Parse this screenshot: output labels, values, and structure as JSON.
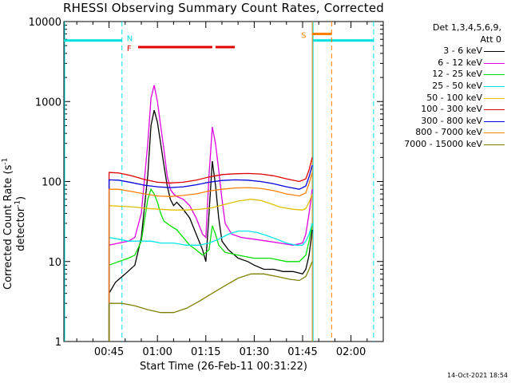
{
  "title": "RHESSI Observing Summary Count Rates, Corrected",
  "xlabel": "Start Time (26-Feb-11 00:31:22)",
  "ylabel_main": "Corrected Count Rate (s",
  "ylabel_exp1": "-1",
  "ylabel_mid": " detector",
  "ylabel_exp2": "-1",
  "ylabel_end": ")",
  "timestamp": "14-Oct-2021 18:54",
  "legend": {
    "header1": "Det 1,3,4,5,6,9,",
    "header2": "Att 0",
    "entries": [
      {
        "label": "3 - 6 keV",
        "color": "#000000"
      },
      {
        "label": "6 - 12 keV",
        "color": "#e000e0"
      },
      {
        "label": "12 - 25 keV",
        "color": "#00e000"
      },
      {
        "label": "25 - 50 keV",
        "color": "#00e8e8"
      },
      {
        "label": "50 - 100 keV",
        "color": "#e0c000"
      },
      {
        "label": "100 - 300 keV",
        "color": "#e00000"
      },
      {
        "label": "300 - 800 keV",
        "color": "#0000e0"
      },
      {
        "label": "800 - 7000 keV",
        "color": "#ff8000"
      },
      {
        "label": "7000 - 15000 keV",
        "color": "#808000"
      }
    ]
  },
  "annotations": {
    "N": {
      "label": "N",
      "color": "#00e0e0"
    },
    "F": {
      "label": "F",
      "color": "#e00000"
    },
    "S": {
      "label": "S",
      "color": "#ff8000"
    }
  },
  "chart_data": {
    "type": "line",
    "title": "RHESSI Observing Summary Count Rates, Corrected",
    "xlabel": "Start Time (26-Feb-11 00:31:22)",
    "ylabel": "Corrected Count Rate (s-1 detector-1)",
    "y_scale": "log",
    "ylim": [
      1,
      10000
    ],
    "xlim": [
      "00:31",
      "02:10"
    ],
    "x_ticks": [
      "00:45",
      "01:00",
      "01:15",
      "01:30",
      "01:45",
      "02:00"
    ],
    "y_ticks": [
      1,
      10,
      100,
      1000,
      10000
    ],
    "grid": false,
    "legend_position": "right",
    "night_intervals": [
      [
        "00:31",
        "00:49"
      ],
      [
        "01:48",
        "02:07"
      ]
    ],
    "saa_interval": [
      "01:48",
      "01:54"
    ],
    "flare_flag_intervals": [
      [
        "00:54",
        "01:17"
      ],
      [
        "01:18",
        "01:24"
      ]
    ],
    "saa_flag_interval": [
      "01:48",
      "01:54"
    ],
    "night_flag_level": 5800,
    "series": [
      {
        "name": "3 - 6 keV",
        "color": "#000000",
        "points": [
          [
            "00:45",
            4
          ],
          [
            "00:47",
            5.5
          ],
          [
            "00:50",
            7
          ],
          [
            "00:53",
            9
          ],
          [
            "00:55",
            20
          ],
          [
            "00:57",
            120
          ],
          [
            "00:58",
            500
          ],
          [
            "00:59",
            780
          ],
          [
            "01:00",
            550
          ],
          [
            "01:01",
            300
          ],
          [
            "01:02",
            160
          ],
          [
            "01:03",
            90
          ],
          [
            "01:04",
            60
          ],
          [
            "01:05",
            50
          ],
          [
            "01:06",
            55
          ],
          [
            "01:08",
            45
          ],
          [
            "01:10",
            35
          ],
          [
            "01:12",
            22
          ],
          [
            "01:14",
            14
          ],
          [
            "01:15",
            10
          ],
          [
            "01:16",
            40
          ],
          [
            "01:17",
            180
          ],
          [
            "01:18",
            90
          ],
          [
            "01:19",
            35
          ],
          [
            "01:20",
            18
          ],
          [
            "01:22",
            14
          ],
          [
            "01:25",
            11
          ],
          [
            "01:28",
            10
          ],
          [
            "01:30",
            9
          ],
          [
            "01:33",
            8
          ],
          [
            "01:36",
            8
          ],
          [
            "01:39",
            7.5
          ],
          [
            "01:42",
            7.5
          ],
          [
            "01:45",
            7
          ],
          [
            "01:46",
            8
          ],
          [
            "01:47",
            12
          ],
          [
            "01:48",
            25
          ]
        ]
      },
      {
        "name": "6 - 12 keV",
        "color": "#e000e0",
        "points": [
          [
            "00:45",
            16
          ],
          [
            "00:48",
            17
          ],
          [
            "00:51",
            18
          ],
          [
            "00:53",
            20
          ],
          [
            "00:55",
            40
          ],
          [
            "00:57",
            300
          ],
          [
            "00:58",
            1100
          ],
          [
            "00:59",
            1600
          ],
          [
            "01:00",
            1000
          ],
          [
            "01:01",
            500
          ],
          [
            "01:02",
            250
          ],
          [
            "01:03",
            120
          ],
          [
            "01:04",
            80
          ],
          [
            "01:05",
            70
          ],
          [
            "01:06",
            65
          ],
          [
            "01:08",
            60
          ],
          [
            "01:10",
            50
          ],
          [
            "01:12",
            35
          ],
          [
            "01:14",
            22
          ],
          [
            "01:15",
            20
          ],
          [
            "01:16",
            120
          ],
          [
            "01:17",
            480
          ],
          [
            "01:18",
            300
          ],
          [
            "01:19",
            140
          ],
          [
            "01:20",
            60
          ],
          [
            "01:21",
            30
          ],
          [
            "01:23",
            22
          ],
          [
            "01:26",
            20
          ],
          [
            "01:30",
            19
          ],
          [
            "01:34",
            18
          ],
          [
            "01:38",
            17
          ],
          [
            "01:42",
            16
          ],
          [
            "01:45",
            17
          ],
          [
            "01:46",
            22
          ],
          [
            "01:47",
            40
          ],
          [
            "01:48",
            80
          ]
        ]
      },
      {
        "name": "12 - 25 keV",
        "color": "#00e000",
        "points": [
          [
            "00:45",
            9
          ],
          [
            "00:48",
            10
          ],
          [
            "00:51",
            11
          ],
          [
            "00:53",
            12
          ],
          [
            "00:55",
            18
          ],
          [
            "00:57",
            60
          ],
          [
            "00:58",
            80
          ],
          [
            "00:59",
            70
          ],
          [
            "01:00",
            55
          ],
          [
            "01:01",
            40
          ],
          [
            "01:02",
            32
          ],
          [
            "01:04",
            28
          ],
          [
            "01:06",
            25
          ],
          [
            "01:08",
            20
          ],
          [
            "01:10",
            16
          ],
          [
            "01:12",
            14
          ],
          [
            "01:14",
            12
          ],
          [
            "01:16",
            14
          ],
          [
            "01:17",
            28
          ],
          [
            "01:18",
            22
          ],
          [
            "01:19",
            16
          ],
          [
            "01:21",
            13
          ],
          [
            "01:25",
            12
          ],
          [
            "01:30",
            11
          ],
          [
            "01:35",
            11
          ],
          [
            "01:40",
            10
          ],
          [
            "01:44",
            10
          ],
          [
            "01:46",
            12
          ],
          [
            "01:47",
            18
          ],
          [
            "01:48",
            30
          ]
        ]
      },
      {
        "name": "25 - 50 keV",
        "color": "#00e8e8",
        "points": [
          [
            "00:45",
            20
          ],
          [
            "00:48",
            19
          ],
          [
            "00:51",
            18
          ],
          [
            "00:55",
            18
          ],
          [
            "00:58",
            18
          ],
          [
            "01:01",
            17
          ],
          [
            "01:05",
            17
          ],
          [
            "01:09",
            16
          ],
          [
            "01:13",
            16
          ],
          [
            "01:16",
            17
          ],
          [
            "01:19",
            19
          ],
          [
            "01:22",
            22
          ],
          [
            "01:25",
            24
          ],
          [
            "01:28",
            24
          ],
          [
            "01:31",
            23
          ],
          [
            "01:34",
            21
          ],
          [
            "01:37",
            19
          ],
          [
            "01:40",
            17
          ],
          [
            "01:43",
            16
          ],
          [
            "01:45",
            16
          ],
          [
            "01:46",
            18
          ],
          [
            "01:47",
            22
          ],
          [
            "01:48",
            30
          ]
        ]
      },
      {
        "name": "50 - 100 keV",
        "color": "#e0c000",
        "points": [
          [
            "00:45",
            50
          ],
          [
            "00:49",
            49
          ],
          [
            "00:53",
            48
          ],
          [
            "00:57",
            46
          ],
          [
            "01:01",
            45
          ],
          [
            "01:05",
            44
          ],
          [
            "01:09",
            44
          ],
          [
            "01:13",
            45
          ],
          [
            "01:17",
            47
          ],
          [
            "01:21",
            52
          ],
          [
            "01:25",
            57
          ],
          [
            "01:29",
            60
          ],
          [
            "01:32",
            58
          ],
          [
            "01:35",
            53
          ],
          [
            "01:38",
            48
          ],
          [
            "01:42",
            45
          ],
          [
            "01:45",
            44
          ],
          [
            "01:46",
            46
          ],
          [
            "01:47",
            55
          ],
          [
            "01:48",
            70
          ]
        ]
      },
      {
        "name": "100 - 300 keV",
        "color": "#e00000",
        "points": [
          [
            "00:45",
            130
          ],
          [
            "00:48",
            128
          ],
          [
            "00:52",
            118
          ],
          [
            "00:56",
            106
          ],
          [
            "01:00",
            98
          ],
          [
            "01:04",
            96
          ],
          [
            "01:08",
            98
          ],
          [
            "01:12",
            104
          ],
          [
            "01:16",
            114
          ],
          [
            "01:20",
            122
          ],
          [
            "01:24",
            125
          ],
          [
            "01:28",
            126
          ],
          [
            "01:32",
            124
          ],
          [
            "01:36",
            118
          ],
          [
            "01:40",
            108
          ],
          [
            "01:44",
            100
          ],
          [
            "01:46",
            108
          ],
          [
            "01:47",
            140
          ],
          [
            "01:48",
            200
          ]
        ]
      },
      {
        "name": "300 - 800 keV",
        "color": "#0000e0",
        "points": [
          [
            "00:45",
            105
          ],
          [
            "00:48",
            104
          ],
          [
            "00:52",
            97
          ],
          [
            "00:56",
            90
          ],
          [
            "01:00",
            86
          ],
          [
            "01:04",
            84
          ],
          [
            "01:08",
            86
          ],
          [
            "01:12",
            91
          ],
          [
            "01:16",
            98
          ],
          [
            "01:20",
            103
          ],
          [
            "01:24",
            105
          ],
          [
            "01:28",
            104
          ],
          [
            "01:32",
            100
          ],
          [
            "01:36",
            94
          ],
          [
            "01:40",
            86
          ],
          [
            "01:44",
            80
          ],
          [
            "01:46",
            88
          ],
          [
            "01:47",
            115
          ],
          [
            "01:48",
            160
          ]
        ]
      },
      {
        "name": "800 - 7000 keV",
        "color": "#ff8000",
        "points": [
          [
            "00:45",
            80
          ],
          [
            "00:48",
            80
          ],
          [
            "00:52",
            75
          ],
          [
            "00:56",
            70
          ],
          [
            "01:00",
            66
          ],
          [
            "01:04",
            65
          ],
          [
            "01:08",
            67
          ],
          [
            "01:12",
            70
          ],
          [
            "01:16",
            76
          ],
          [
            "01:20",
            80
          ],
          [
            "01:24",
            83
          ],
          [
            "01:28",
            84
          ],
          [
            "01:32",
            82
          ],
          [
            "01:36",
            77
          ],
          [
            "01:40",
            70
          ],
          [
            "01:44",
            66
          ],
          [
            "01:46",
            72
          ],
          [
            "01:47",
            95
          ],
          [
            "01:48",
            130
          ]
        ]
      },
      {
        "name": "7000 - 15000 keV",
        "color": "#808000",
        "points": [
          [
            "00:45",
            3
          ],
          [
            "00:49",
            3
          ],
          [
            "00:53",
            2.8
          ],
          [
            "00:57",
            2.5
          ],
          [
            "01:01",
            2.3
          ],
          [
            "01:05",
            2.3
          ],
          [
            "01:09",
            2.6
          ],
          [
            "01:13",
            3.2
          ],
          [
            "01:17",
            4
          ],
          [
            "01:21",
            5
          ],
          [
            "01:25",
            6.2
          ],
          [
            "01:29",
            7
          ],
          [
            "01:33",
            7
          ],
          [
            "01:37",
            6.5
          ],
          [
            "01:41",
            6
          ],
          [
            "01:44",
            5.8
          ],
          [
            "01:46",
            6.5
          ],
          [
            "01:47",
            8
          ],
          [
            "01:48",
            10
          ]
        ]
      }
    ]
  }
}
